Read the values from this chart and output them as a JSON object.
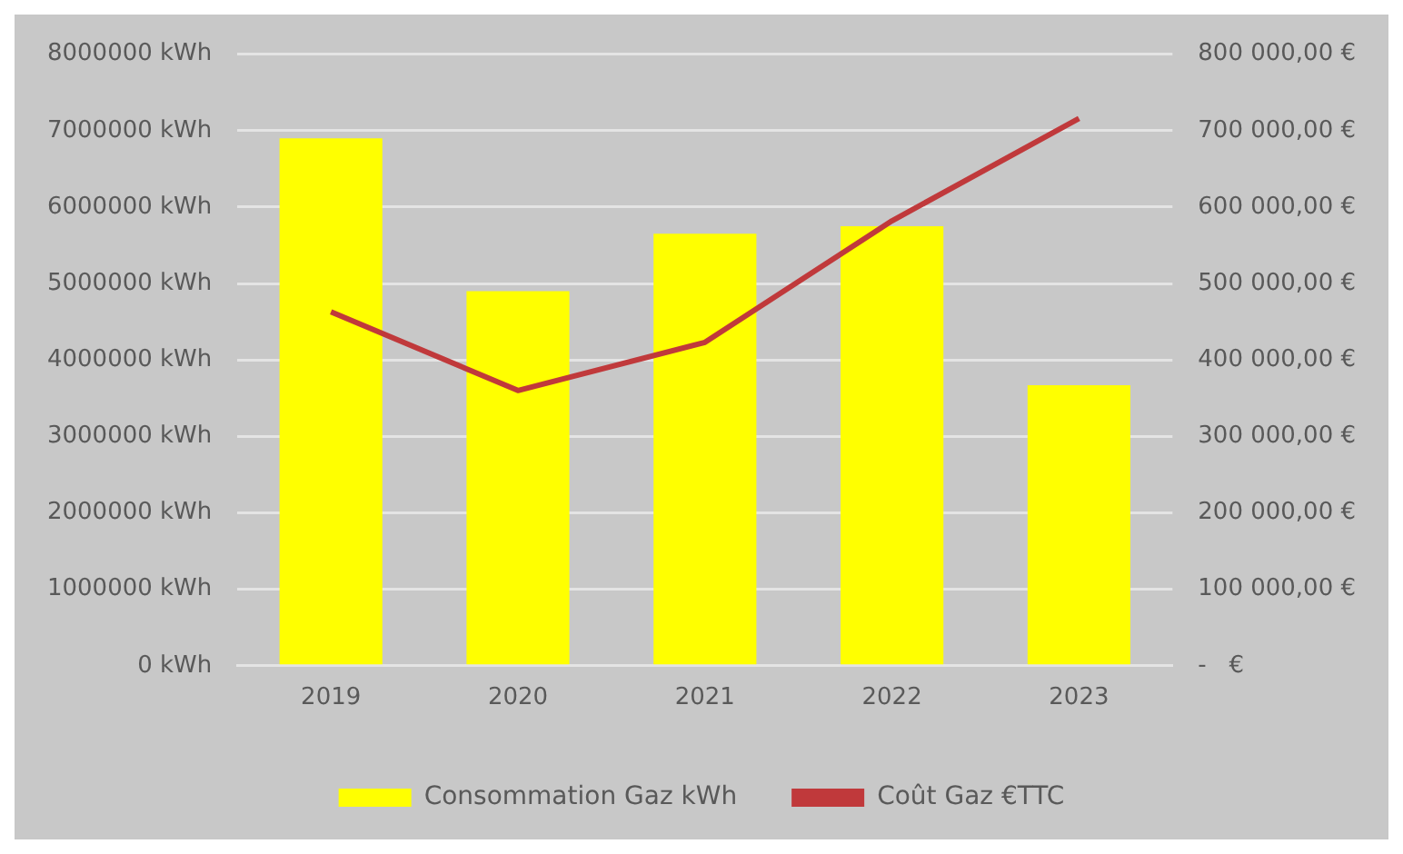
{
  "chart_data": {
    "type": "bar",
    "categories": [
      "2019",
      "2020",
      "2021",
      "2022",
      "2023"
    ],
    "series": [
      {
        "name": "Consommation Gaz kWh",
        "color": "#ffff00",
        "values": [
          6900000,
          4900000,
          5650000,
          5750000,
          3670000
        ]
      },
      {
        "name": "Coût Gaz €TTC",
        "type": "line",
        "axis": "y2",
        "color": "#c0393b",
        "values": [
          463000,
          360000,
          423000,
          582000,
          716000
        ]
      }
    ],
    "ylim": [
      0,
      8000000
    ],
    "yticks": [
      {
        "value": 0,
        "label": "0 kWh"
      },
      {
        "value": 1000000,
        "label": "1000000 kWh"
      },
      {
        "value": 2000000,
        "label": "2000000 kWh"
      },
      {
        "value": 3000000,
        "label": "3000000 kWh"
      },
      {
        "value": 4000000,
        "label": "4000000 kWh"
      },
      {
        "value": 5000000,
        "label": "5000000 kWh"
      },
      {
        "value": 6000000,
        "label": "6000000 kWh"
      },
      {
        "value": 7000000,
        "label": "7000000 kWh"
      },
      {
        "value": 8000000,
        "label": "8000000 kWh"
      }
    ],
    "y2lim": [
      0,
      800000
    ],
    "y2ticks": [
      {
        "value": 0,
        "label": "-   €"
      },
      {
        "value": 100000,
        "label": "100 000,00 €"
      },
      {
        "value": 200000,
        "label": "200 000,00 €"
      },
      {
        "value": 300000,
        "label": "300 000,00 €"
      },
      {
        "value": 400000,
        "label": "400 000,00 €"
      },
      {
        "value": 500000,
        "label": "500 000,00 €"
      },
      {
        "value": 600000,
        "label": "600 000,00 €"
      },
      {
        "value": 700000,
        "label": "700 000,00 €"
      },
      {
        "value": 800000,
        "label": "800 000,00 €"
      }
    ],
    "grid": "y",
    "legend": "bottom",
    "marker": "none"
  }
}
